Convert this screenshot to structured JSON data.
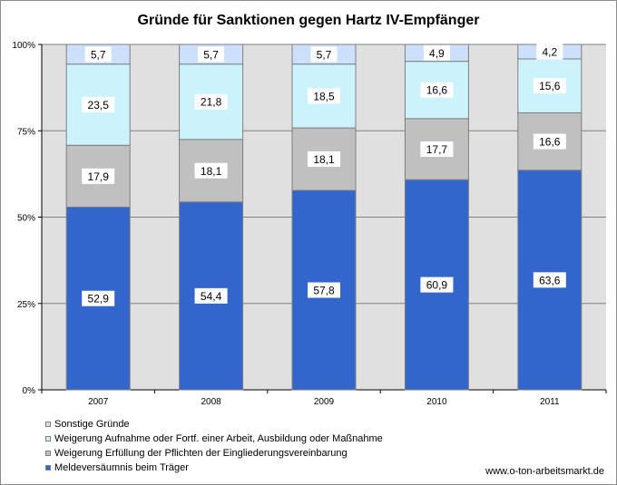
{
  "chart_data": {
    "type": "bar",
    "stacked": true,
    "normalized": true,
    "title": "Gründe für Sanktionen gegen Hartz IV-Empfänger",
    "categories": [
      "2007",
      "2008",
      "2009",
      "2010",
      "2011"
    ],
    "ylim": [
      0,
      100
    ],
    "yticks": [
      "0%",
      "25%",
      "50%",
      "75%",
      "100%"
    ],
    "grid": true,
    "legend_position": "bottom-left",
    "series": [
      {
        "name": "Meldeversäumnis beim Träger",
        "color": "#3366cc",
        "values": [
          52.9,
          54.4,
          57.8,
          60.9,
          63.6
        ],
        "labels": [
          "52,9",
          "54,4",
          "57,8",
          "60,9",
          "63,6"
        ]
      },
      {
        "name": "Weigerung Erfüllung der Pflichten der Eingliederungsvereinbarung",
        "color": "#c0c0c0",
        "values": [
          17.9,
          18.1,
          18.1,
          17.7,
          16.6
        ],
        "labels": [
          "17,9",
          "18,1",
          "18,1",
          "17,7",
          "16,6"
        ]
      },
      {
        "name": "Weigerung Aufnahme oder Fortf. einer Arbeit, Ausbildung oder Maßnahme",
        "color": "#ccf3fb",
        "values": [
          23.5,
          21.8,
          18.5,
          16.6,
          15.6
        ],
        "labels": [
          "23,5",
          "21,8",
          "18,5",
          "16,6",
          "15,6"
        ]
      },
      {
        "name": "Sonstige Gründe",
        "color": "#cce0fb",
        "values": [
          5.7,
          5.7,
          5.7,
          4.9,
          4.2
        ],
        "labels": [
          "5,7",
          "5,7",
          "5,7",
          "4,9",
          "4,2"
        ]
      }
    ],
    "legend_order": [
      3,
      2,
      1,
      0
    ]
  },
  "footer": {
    "source": "www.o-ton-arbeitsmarkt.de"
  },
  "colors": {
    "plot_background": "#e0e0e0",
    "gridline": "#808080"
  }
}
